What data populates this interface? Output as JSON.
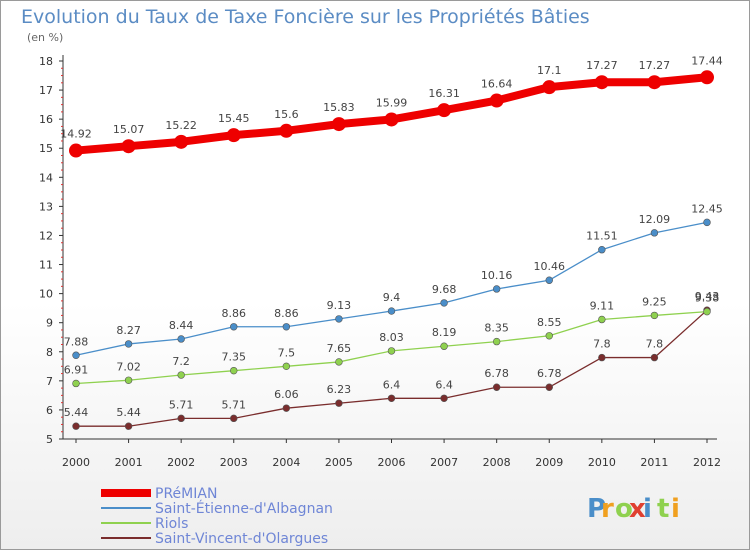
{
  "chart_data": {
    "type": "line",
    "title": "Evolution du Taux de Taxe Foncière sur les Propriétés Bâties",
    "subtitle": "(en %)",
    "x": [
      "2000",
      "2001",
      "2002",
      "2003",
      "2004",
      "2005",
      "2006",
      "2007",
      "2008",
      "2009",
      "2010",
      "2011",
      "2012"
    ],
    "y_ticks": [
      "5",
      "6",
      "7",
      "8",
      "9",
      "10",
      "11",
      "12",
      "13",
      "14",
      "15",
      "16",
      "17",
      "18"
    ],
    "ylim": [
      5,
      18
    ],
    "grid": false,
    "legend_position": "bottom-left",
    "series": [
      {
        "name": "PRéMIAN",
        "color": "#ee0000",
        "values": [
          14.92,
          15.07,
          15.22,
          15.45,
          15.6,
          15.83,
          15.99,
          16.31,
          16.64,
          17.1,
          17.27,
          17.27,
          17.44
        ],
        "labels": [
          "14.92",
          "15.07",
          "15.22",
          "15.45",
          "15.6",
          "15.83",
          "15.99",
          "16.31",
          "16.64",
          "17.1",
          "17.27",
          "17.27",
          "17.44"
        ]
      },
      {
        "name": "Saint-Étienne-d'Albagnan",
        "color": "#4a8ec9",
        "values": [
          7.88,
          8.27,
          8.44,
          8.86,
          8.86,
          9.13,
          9.4,
          9.68,
          10.16,
          10.46,
          11.51,
          12.09,
          12.45
        ],
        "labels": [
          "7.88",
          "8.27",
          "8.44",
          "8.86",
          "8.86",
          "9.13",
          "9.4",
          "9.68",
          "10.16",
          "10.46",
          "11.51",
          "12.09",
          "12.45"
        ]
      },
      {
        "name": "Riols",
        "color": "#8fd14f",
        "values": [
          6.91,
          7.02,
          7.2,
          7.35,
          7.5,
          7.65,
          8.03,
          8.19,
          8.35,
          8.55,
          9.11,
          9.25,
          9.38
        ],
        "labels": [
          "6.91",
          "7.02",
          "7.2",
          "7.35",
          "7.5",
          "7.65",
          "8.03",
          "8.19",
          "8.35",
          "8.55",
          "9.11",
          "9.25",
          "9.38"
        ]
      },
      {
        "name": "Saint-Vincent-d'Olargues",
        "color": "#7a2d2d",
        "values": [
          5.44,
          5.44,
          5.71,
          5.71,
          6.06,
          6.23,
          6.4,
          6.4,
          6.78,
          6.78,
          7.8,
          7.8,
          9.43
        ],
        "labels": [
          "5.44",
          "5.44",
          "5.71",
          "5.71",
          "6.06",
          "6.23",
          "6.4",
          "6.4",
          "6.78",
          "6.78",
          "7.8",
          "7.8",
          "9.43"
        ]
      }
    ]
  },
  "logo": {
    "letters": [
      "P",
      "r",
      "o",
      "x",
      "i",
      "t",
      "i"
    ],
    "colors": [
      "#4a8ec9",
      "#f0a020",
      "#8fd14f",
      "#e04030",
      "#4a8ec9",
      "#8fd14f",
      "#f0a020"
    ]
  }
}
